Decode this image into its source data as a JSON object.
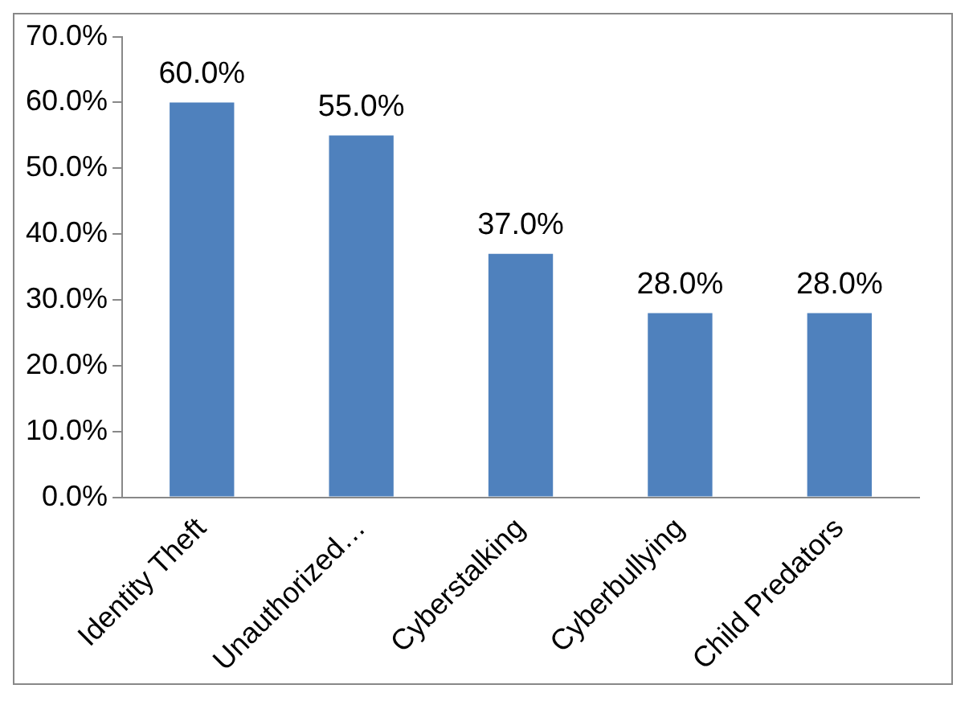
{
  "chart_data": {
    "type": "bar",
    "categories": [
      "Identity Theft",
      "Unauthorized…",
      "Cyberstalking",
      "Cyberbullying",
      "Child Predators"
    ],
    "values": [
      60,
      55,
      37,
      28,
      28
    ],
    "value_labels": [
      "60.0%",
      "55.0%",
      "37.0%",
      "28.0%",
      "28.0%"
    ],
    "color": "#4f81bd",
    "ylim": [
      0,
      70
    ],
    "yticks": [
      {
        "value": 0,
        "label": "0.0%"
      },
      {
        "value": 10,
        "label": "10.0%"
      },
      {
        "value": 20,
        "label": "20.0%"
      },
      {
        "value": 30,
        "label": "30.0%"
      },
      {
        "value": 40,
        "label": "40.0%"
      },
      {
        "value": 50,
        "label": "50.0%"
      },
      {
        "value": 60,
        "label": "60.0%"
      },
      {
        "value": 70,
        "label": "70.0%"
      }
    ],
    "grid": false,
    "legend": false
  }
}
